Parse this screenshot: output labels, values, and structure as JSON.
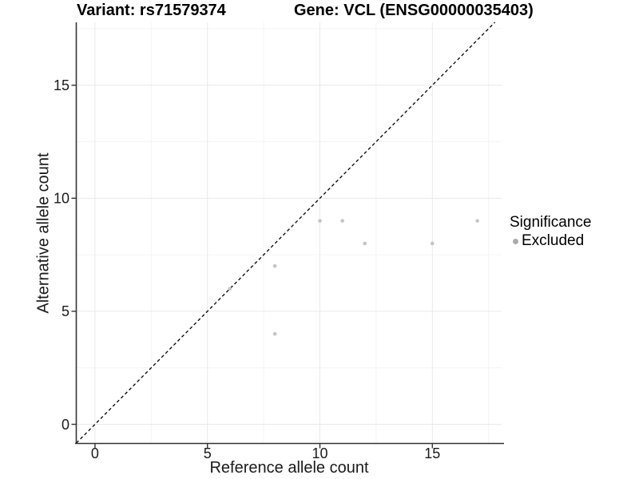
{
  "titles": {
    "left": "Variant: rs71579374",
    "right": "Gene: VCL (ENSG00000035403)"
  },
  "chart_data": {
    "type": "scatter",
    "title_left": "Variant: rs71579374",
    "title_right": "Gene: VCL (ENSG00000035403)",
    "xlabel": "Reference allele count",
    "ylabel": "Alternative allele count",
    "xlim": [
      -0.85,
      18.08
    ],
    "ylim": [
      -0.83,
      17.78
    ],
    "x_ticks": [
      0,
      5,
      10,
      15
    ],
    "y_ticks": [
      0,
      5,
      10,
      15
    ],
    "x_minor_ticks": [
      2.5,
      7.5,
      12.5,
      17.5
    ],
    "y_minor_ticks": [
      2.5,
      7.5,
      12.5,
      17.5
    ],
    "grid": "major+minor",
    "legend_position": "right",
    "series": [
      {
        "name": "Excluded",
        "color": "#c4c4c4",
        "points": [
          [
            6,
            6
          ],
          [
            8,
            4
          ],
          [
            8,
            7
          ],
          [
            10,
            9
          ],
          [
            11,
            9
          ],
          [
            12,
            8
          ],
          [
            15,
            8
          ],
          [
            17,
            9
          ]
        ]
      }
    ],
    "reference_line": {
      "type": "identity",
      "slope": 1,
      "intercept": 0,
      "style": "dashed",
      "color": "#000000"
    },
    "legend": {
      "title": "Significance",
      "items": [
        {
          "label": "Excluded",
          "marker_color": "#ababab"
        }
      ]
    },
    "colors": {
      "major_grid": "#e9e9e9",
      "minor_grid": "#f4f4f4",
      "axis_line": "#333333",
      "tick_text": "#1a1a1a",
      "title_text": "#000000"
    }
  }
}
